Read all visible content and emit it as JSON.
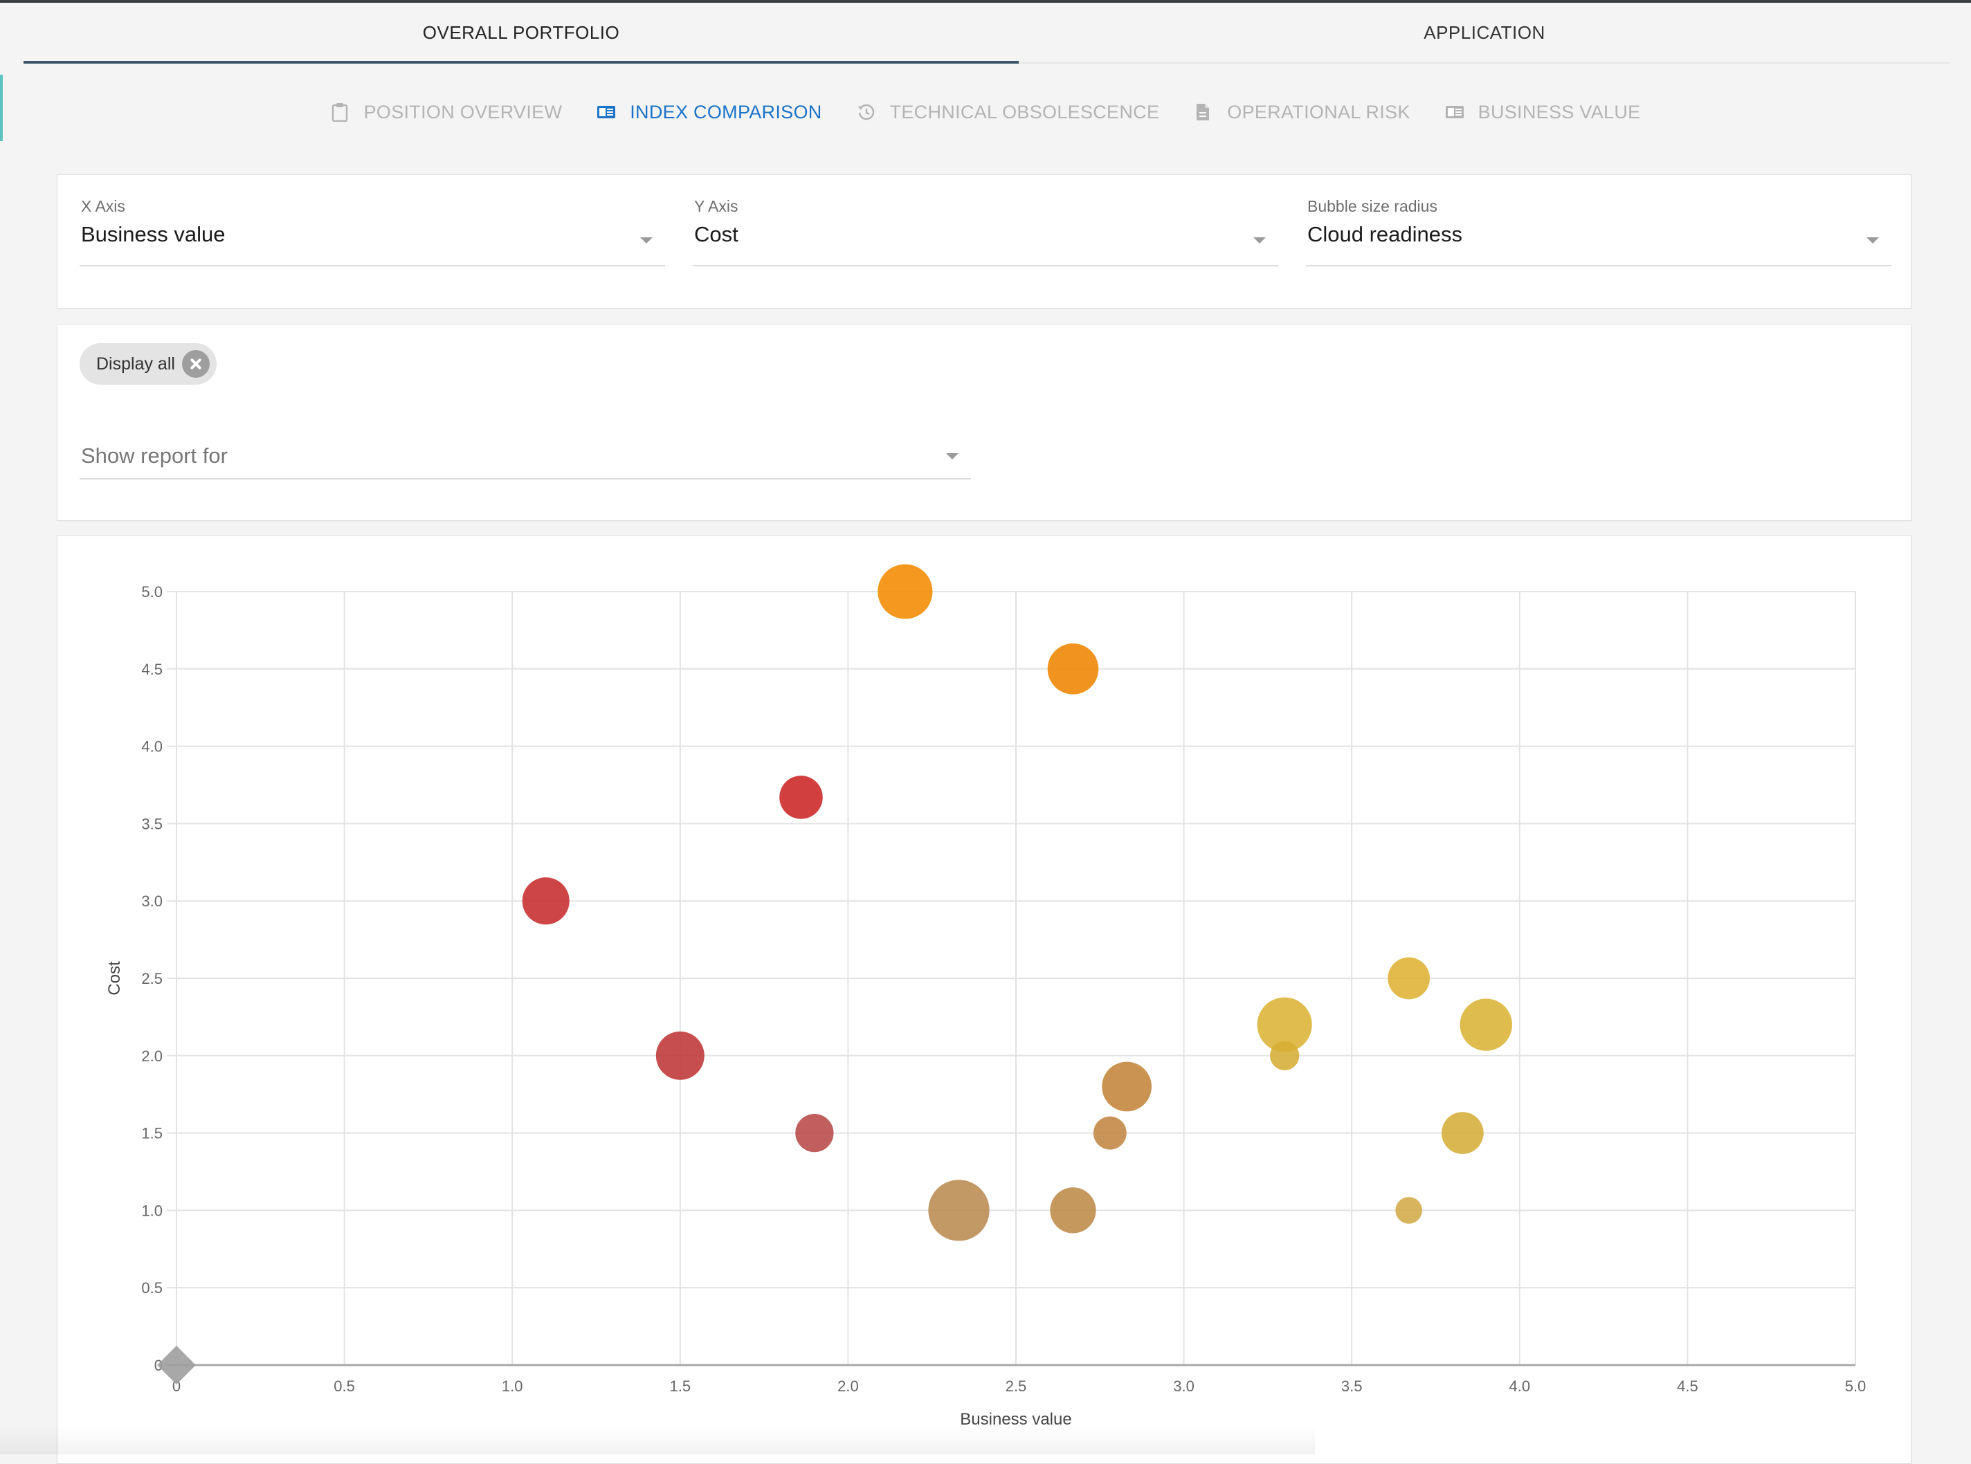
{
  "tabs": [
    {
      "label": "OVERALL PORTFOLIO",
      "active": true
    },
    {
      "label": "APPLICATION",
      "active": false
    }
  ],
  "subtabs": [
    {
      "label": "POSITION OVERVIEW",
      "icon": "clipboard-icon",
      "active": false
    },
    {
      "label": "INDEX COMPARISON",
      "icon": "index-card-icon",
      "active": true
    },
    {
      "label": "TECHNICAL OBSOLESCENCE",
      "icon": "history-icon",
      "active": false
    },
    {
      "label": "OPERATIONAL RISK",
      "icon": "document-icon",
      "active": false
    },
    {
      "label": "BUSINESS VALUE",
      "icon": "index-card-icon",
      "active": false
    }
  ],
  "axes": {
    "x": {
      "label": "X Axis",
      "value": "Business value"
    },
    "y": {
      "label": "Y Axis",
      "value": "Cost"
    },
    "size": {
      "label": "Bubble size radius",
      "value": "Cloud readiness"
    }
  },
  "filter": {
    "chip_label": "Display all",
    "report_placeholder": "Show report for"
  },
  "colors": {
    "active_tab_underline": "#3d5468",
    "active_subtab": "#1a73c8"
  },
  "chart_data": {
    "type": "scatter",
    "xlabel": "Business value",
    "ylabel": "Cost",
    "xlim": [
      0,
      5
    ],
    "ylim": [
      0,
      5
    ],
    "xticks": [
      "0",
      "0.5",
      "1.0",
      "1.5",
      "2.0",
      "2.5",
      "3.0",
      "3.5",
      "4.0",
      "4.5",
      "5.0"
    ],
    "yticks": [
      "0",
      "0.5",
      "1.0",
      "1.5",
      "2.0",
      "2.5",
      "3.0",
      "3.5",
      "4.0",
      "4.5",
      "5.0"
    ],
    "grid": true,
    "points": [
      {
        "x": 2.17,
        "y": 5.0,
        "size": 4.3,
        "color": "#f28a00"
      },
      {
        "x": 2.67,
        "y": 4.5,
        "size": 4.0,
        "color": "#ee8500"
      },
      {
        "x": 1.86,
        "y": 3.67,
        "size": 3.4,
        "color": "#cc2424"
      },
      {
        "x": 1.1,
        "y": 3.0,
        "size": 3.7,
        "color": "#c62b2b"
      },
      {
        "x": 1.5,
        "y": 2.0,
        "size": 3.8,
        "color": "#bf3636"
      },
      {
        "x": 1.9,
        "y": 1.5,
        "size": 3.0,
        "color": "#b84848"
      },
      {
        "x": 2.33,
        "y": 1.0,
        "size": 4.8,
        "color": "#b98a50"
      },
      {
        "x": 2.67,
        "y": 1.0,
        "size": 3.6,
        "color": "#bd8a48"
      },
      {
        "x": 2.78,
        "y": 1.5,
        "size": 2.6,
        "color": "#c08540"
      },
      {
        "x": 2.83,
        "y": 1.8,
        "size": 3.9,
        "color": "#c4843a"
      },
      {
        "x": 3.3,
        "y": 2.2,
        "size": 4.3,
        "color": "#dcb336"
      },
      {
        "x": 3.3,
        "y": 2.0,
        "size": 2.3,
        "color": "#d6ae36"
      },
      {
        "x": 3.67,
        "y": 2.5,
        "size": 3.3,
        "color": "#dfb234"
      },
      {
        "x": 3.9,
        "y": 2.2,
        "size": 4.1,
        "color": "#dab334"
      },
      {
        "x": 3.83,
        "y": 1.5,
        "size": 3.3,
        "color": "#d6ad3a"
      },
      {
        "x": 3.67,
        "y": 1.0,
        "size": 2.1,
        "color": "#d3aa48"
      },
      {
        "x": 0,
        "y": 0,
        "size": 0,
        "color": "#9e9e9e",
        "marker": "diamond"
      }
    ]
  }
}
